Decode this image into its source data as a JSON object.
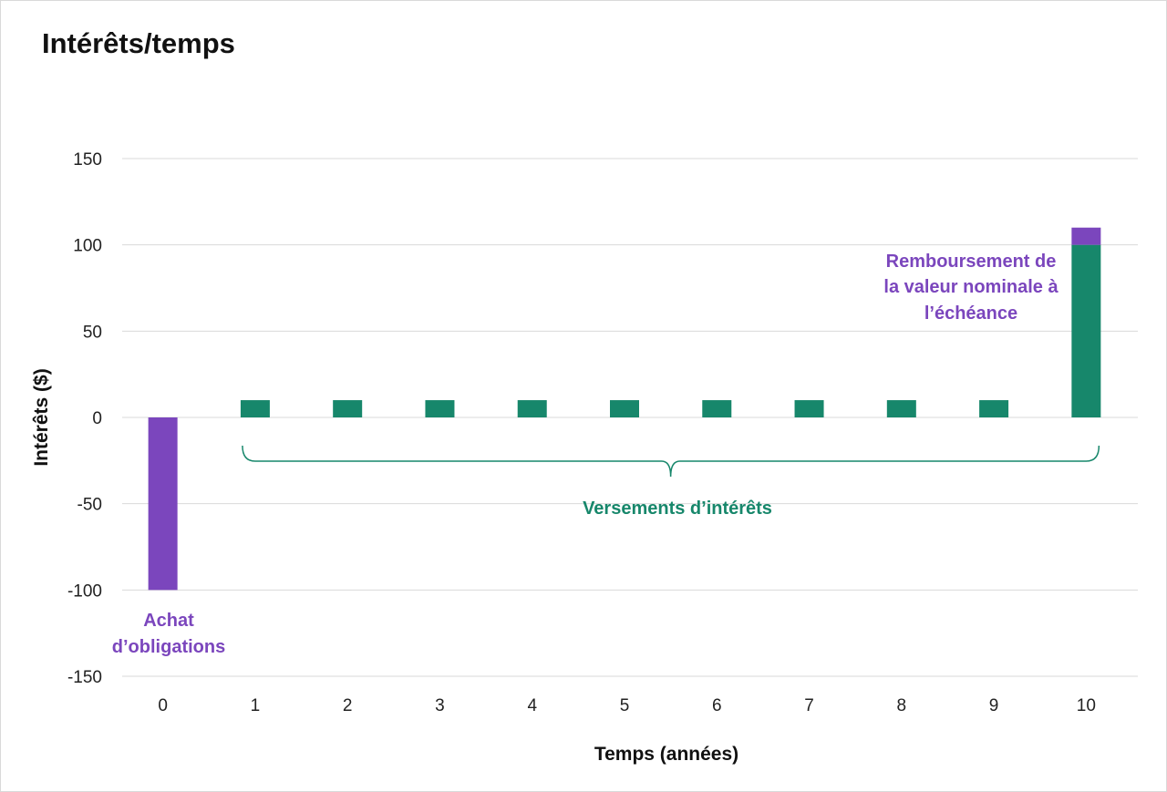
{
  "colors": {
    "purchase": "#7b46bd",
    "interest": "#17876b",
    "grid": "#d9d9d9"
  },
  "chart_data": {
    "type": "bar",
    "title": "Intérêts/temps",
    "xlabel": "Temps (années)",
    "ylabel": "Intérêts ($)",
    "categories": [
      "0",
      "1",
      "2",
      "3",
      "4",
      "5",
      "6",
      "7",
      "8",
      "9",
      "10"
    ],
    "ylim": [
      -150,
      150
    ],
    "yticks": [
      "150",
      "100",
      "50",
      "0",
      "-50",
      "-100",
      "-150"
    ],
    "stacked": true,
    "series": [
      {
        "color": "purchase",
        "values": [
          -100,
          0,
          0,
          0,
          0,
          0,
          0,
          0,
          0,
          0,
          10
        ]
      },
      {
        "color": "interest",
        "values": [
          0,
          10,
          10,
          10,
          10,
          10,
          10,
          10,
          10,
          10,
          100
        ]
      }
    ],
    "legend": "none",
    "grid": true,
    "annotations": {
      "purchase": [
        "Achat",
        "d’obligations"
      ],
      "payments": "Versements d’intérêts",
      "repayment": [
        "Remboursement de",
        "la valeur nominale à",
        "l’échéance"
      ]
    }
  }
}
